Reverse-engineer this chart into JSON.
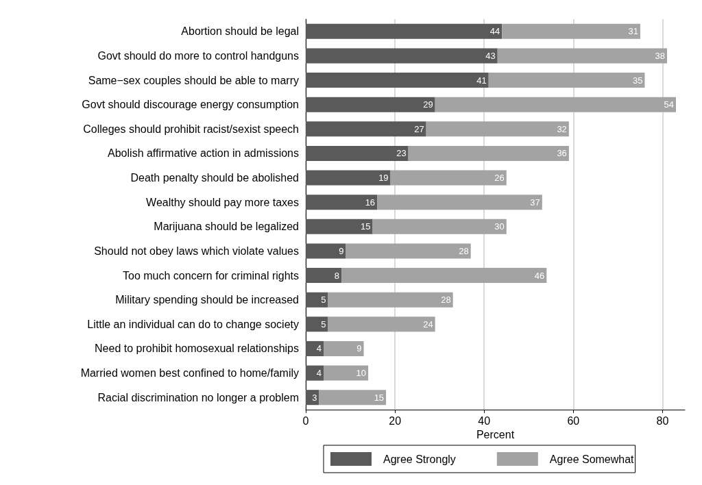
{
  "chart_data": {
    "type": "bar",
    "orientation": "horizontal",
    "stacked": true,
    "categories": [
      "Abortion should be legal",
      "Govt should do more to control handguns",
      "Same−sex couples should be able to marry",
      "Govt should discourage energy consumption",
      "Colleges should prohibit racist/sexist speech",
      "Abolish affirmative action in admissions",
      "Death penalty should be abolished",
      "Wealthy should pay more taxes",
      "Marijuana should be legalized",
      "Should not obey laws which violate values",
      "Too much concern for criminal rights",
      "Military spending should be increased",
      "Little an individual can do to change society",
      "Need to prohibit homosexual relationships",
      "Married women best confined to home/family",
      "Racial discrimination no longer a problem"
    ],
    "series": [
      {
        "name": "Agree Strongly",
        "color": "#5a5a5a",
        "values": [
          44,
          43,
          41,
          29,
          27,
          23,
          19,
          16,
          15,
          9,
          8,
          5,
          5,
          4,
          4,
          3
        ]
      },
      {
        "name": "Agree Somewhat",
        "color": "#a3a3a3",
        "values": [
          31,
          38,
          35,
          54,
          32,
          36,
          26,
          37,
          30,
          28,
          46,
          28,
          24,
          9,
          10,
          15
        ]
      }
    ],
    "xlabel": "Percent",
    "xlim": [
      0,
      85
    ],
    "xticks": [
      0,
      20,
      40,
      60,
      80
    ],
    "grid": "x",
    "legend": "bottom",
    "data_labels": true
  }
}
